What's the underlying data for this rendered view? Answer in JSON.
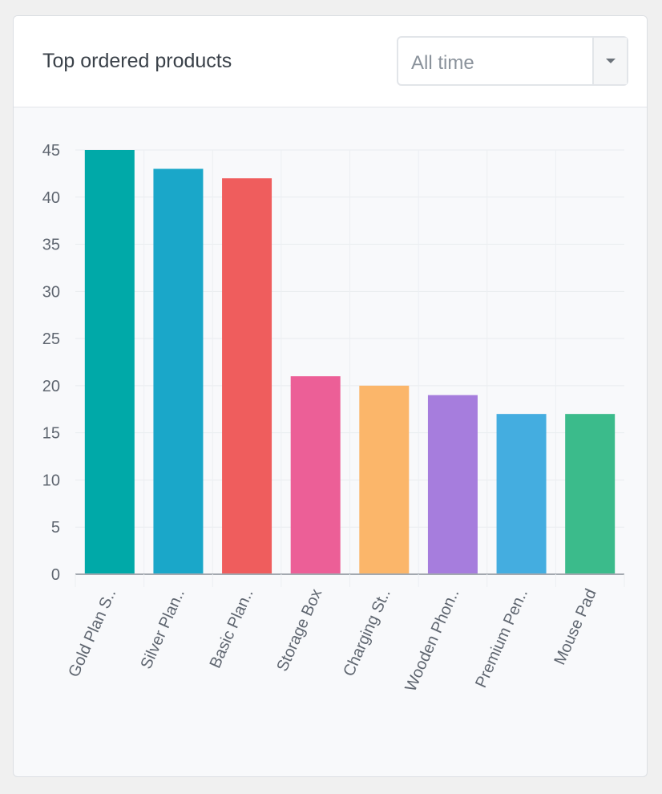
{
  "card": {
    "title": "Top ordered products",
    "filter": {
      "selected": "All time",
      "toggle_icon": "caret-down-icon"
    }
  },
  "chart_data": {
    "type": "bar",
    "title": "",
    "xlabel": "",
    "ylabel": "",
    "ylim": [
      0,
      45
    ],
    "yticks": [
      0,
      5,
      10,
      15,
      20,
      25,
      30,
      35,
      40,
      45
    ],
    "grid": true,
    "categories": [
      "Gold Plan S..",
      "Silver Plan..",
      "Basic Plan..",
      "Storage Box",
      "Charging St..",
      "Wooden Phon..",
      "Premium Pen..",
      "Mouse Pad"
    ],
    "values": [
      45,
      43,
      42,
      21,
      20,
      19,
      17,
      17
    ],
    "colors": [
      "#00a9a8",
      "#1aa7c9",
      "#ef5d5d",
      "#ec5f97",
      "#fbb66a",
      "#a67ddd",
      "#44ade0",
      "#3bbb8b"
    ]
  }
}
